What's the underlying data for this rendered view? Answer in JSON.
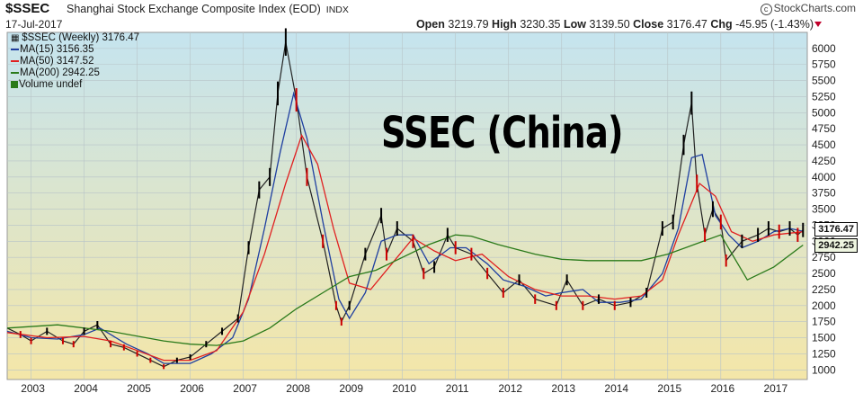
{
  "header": {
    "ticker": "$SSEC",
    "name": "Shanghai Stock Exchange Composite Index (EOD)",
    "exchange": "INDX",
    "date": "17-Jul-2017",
    "brand": "StockCharts.com",
    "open_label": "Open",
    "open": "3219.79",
    "high_label": "High",
    "high": "3230.35",
    "low_label": "Low",
    "low": "3139.50",
    "close_label": "Close",
    "close": "3176.47",
    "chg_label": "Chg",
    "chg": "-45.95 (-1.43%)"
  },
  "legend": {
    "main": "$SSEC (Weekly) 3176.47",
    "ma15": "MA(15) 3156.35",
    "ma50": "MA(50) 3147.52",
    "ma200": "MA(200) 2942.25",
    "volume": "Volume undef"
  },
  "overlay_text": "SSEC (China)",
  "tags": {
    "last": "3176.47",
    "ma200": "2942.25"
  },
  "colors": {
    "up": "#000000",
    "down": "#cc0000",
    "ma15": "#1f3fa0",
    "ma50": "#e02020",
    "ma200": "#2a7a1a",
    "bg_top": "#c5e4ef",
    "bg_bottom": "#f4e6a8"
  },
  "chart_data": {
    "type": "line",
    "title": "",
    "x_unit": "year",
    "xlim": [
      2002.55,
      2017.63
    ],
    "ylim": [
      850,
      6250
    ],
    "y_ticks": [
      1000,
      1250,
      1500,
      1750,
      2000,
      2250,
      2500,
      2750,
      3000,
      3250,
      3500,
      3750,
      4000,
      4250,
      4500,
      4750,
      5000,
      5250,
      5500,
      5750,
      6000
    ],
    "x_ticks": [
      2003,
      2004,
      2005,
      2006,
      2007,
      2008,
      2009,
      2010,
      2011,
      2012,
      2013,
      2014,
      2015,
      2016,
      2017
    ],
    "series": [
      {
        "name": "$SSEC (Weekly)",
        "kind": "price",
        "x": [
          2002.55,
          2002.8,
          2003.0,
          2003.3,
          2003.6,
          2003.8,
          2004.0,
          2004.25,
          2004.5,
          2004.75,
          2005.0,
          2005.25,
          2005.5,
          2005.75,
          2006.0,
          2006.3,
          2006.6,
          2006.9,
          2007.1,
          2007.3,
          2007.5,
          2007.65,
          2007.8,
          2008.0,
          2008.2,
          2008.5,
          2008.75,
          2008.85,
          2009.0,
          2009.3,
          2009.6,
          2009.7,
          2009.9,
          2010.2,
          2010.4,
          2010.6,
          2010.85,
          2011.0,
          2011.3,
          2011.6,
          2011.9,
          2012.2,
          2012.5,
          2012.9,
          2013.1,
          2013.4,
          2013.7,
          2014.0,
          2014.3,
          2014.6,
          2014.9,
          2015.1,
          2015.3,
          2015.45,
          2015.55,
          2015.7,
          2015.85,
          2016.0,
          2016.1,
          2016.4,
          2016.7,
          2016.9,
          2017.1,
          2017.3,
          2017.45,
          2017.55
        ],
        "y": [
          1650,
          1550,
          1450,
          1600,
          1450,
          1400,
          1600,
          1700,
          1400,
          1350,
          1250,
          1150,
          1050,
          1150,
          1200,
          1400,
          1600,
          1800,
          2900,
          3800,
          4000,
          5300,
          6100,
          5200,
          4000,
          3000,
          2000,
          1750,
          2000,
          2800,
          3400,
          2800,
          3200,
          3000,
          2500,
          2600,
          3100,
          2900,
          2800,
          2500,
          2200,
          2400,
          2100,
          2000,
          2400,
          2000,
          2100,
          2000,
          2050,
          2200,
          3200,
          3300,
          4500,
          5150,
          3900,
          3100,
          3500,
          3300,
          2700,
          3000,
          3100,
          3200,
          3150,
          3200,
          3100,
          3176
        ]
      },
      {
        "name": "MA(15)",
        "kind": "ma",
        "x": [
          2002.55,
          2003.0,
          2003.5,
          2004.0,
          2004.3,
          2004.8,
          2005.2,
          2005.5,
          2006.0,
          2006.4,
          2006.8,
          2007.1,
          2007.4,
          2007.7,
          2007.95,
          2008.2,
          2008.5,
          2008.8,
          2009.0,
          2009.3,
          2009.6,
          2009.9,
          2010.2,
          2010.5,
          2010.9,
          2011.2,
          2011.6,
          2011.9,
          2012.3,
          2012.7,
          2013.0,
          2013.4,
          2013.7,
          2014.1,
          2014.5,
          2014.9,
          2015.2,
          2015.45,
          2015.65,
          2015.9,
          2016.15,
          2016.4,
          2016.7,
          2017.0,
          2017.3,
          2017.55
        ],
        "y": [
          1600,
          1500,
          1480,
          1550,
          1650,
          1400,
          1250,
          1100,
          1100,
          1250,
          1500,
          2100,
          3200,
          4400,
          5300,
          4600,
          3300,
          2100,
          1800,
          2200,
          3000,
          3100,
          3100,
          2650,
          2900,
          2900,
          2650,
          2400,
          2300,
          2150,
          2200,
          2250,
          2050,
          2050,
          2100,
          2500,
          3200,
          4300,
          4350,
          3400,
          3100,
          2900,
          3000,
          3150,
          3200,
          3156
        ]
      },
      {
        "name": "MA(50)",
        "kind": "ma",
        "x": [
          2002.55,
          2003.3,
          2004.0,
          2004.5,
          2005.0,
          2005.5,
          2006.0,
          2006.5,
          2007.0,
          2007.4,
          2007.8,
          2008.1,
          2008.4,
          2008.7,
          2009.0,
          2009.4,
          2009.8,
          2010.2,
          2010.6,
          2011.0,
          2011.5,
          2012.0,
          2012.5,
          2013.0,
          2013.5,
          2014.0,
          2014.5,
          2014.9,
          2015.2,
          2015.6,
          2015.9,
          2016.2,
          2016.6,
          2017.0,
          2017.55
        ],
        "y": [
          1580,
          1500,
          1520,
          1450,
          1300,
          1150,
          1150,
          1300,
          1900,
          2800,
          3900,
          4650,
          4200,
          3200,
          2350,
          2250,
          2650,
          3050,
          2850,
          2700,
          2800,
          2450,
          2250,
          2150,
          2150,
          2100,
          2150,
          2400,
          3100,
          3900,
          3700,
          3150,
          3000,
          3100,
          3148
        ]
      },
      {
        "name": "MA(200)",
        "kind": "ma",
        "x": [
          2002.55,
          2003.5,
          2004.5,
          2005.5,
          2006.0,
          2006.5,
          2007.0,
          2007.5,
          2008.0,
          2008.5,
          2009.0,
          2009.5,
          2010.0,
          2010.5,
          2011.0,
          2011.3,
          2011.8,
          2012.5,
          2013.0,
          2013.5,
          2014.0,
          2014.5,
          2015.0,
          2015.5,
          2016.0,
          2016.5,
          2017.0,
          2017.55
        ],
        "y": [
          1650,
          1700,
          1600,
          1450,
          1400,
          1380,
          1450,
          1650,
          1950,
          2200,
          2450,
          2550,
          2750,
          2950,
          3100,
          3080,
          2950,
          2800,
          2720,
          2700,
          2700,
          2700,
          2800,
          2950,
          3100,
          2400,
          2600,
          2942
        ]
      }
    ]
  }
}
